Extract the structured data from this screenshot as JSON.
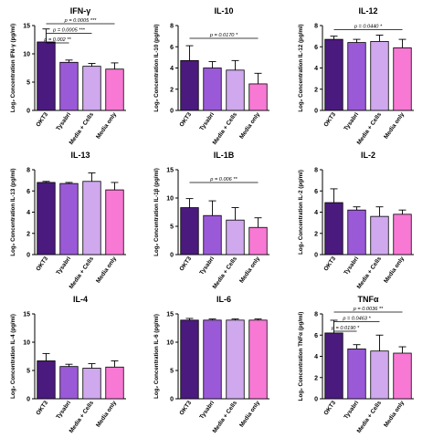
{
  "chart_data": [
    {
      "type": "bar",
      "title": "IFN-γ",
      "ylabel": "Log₂ Concentration IFN-γ (pg/ml)",
      "categories": [
        "OKT3",
        "Tysabri",
        "Media + Cells",
        "Media only"
      ],
      "values": [
        12.1,
        8.5,
        7.8,
        7.3
      ],
      "errors": [
        2.3,
        0.4,
        0.5,
        1.1
      ],
      "ylim": [
        0,
        15
      ],
      "yticks": [
        0,
        5,
        10,
        15
      ],
      "annotations": [
        {
          "from": 0,
          "to": 3,
          "label": "p = 0.0005 ***"
        },
        {
          "from": 0,
          "to": 2,
          "label": "p = 0.0005 ***"
        },
        {
          "from": 0,
          "to": 1,
          "label": "p = 0.002 **"
        }
      ]
    },
    {
      "type": "bar",
      "title": "IL-10",
      "ylabel": "Log₂ Concentration IL-10 (pg/ml)",
      "categories": [
        "OKT3",
        "Tysabri",
        "Media + Cells",
        "Media only"
      ],
      "values": [
        4.7,
        4.0,
        3.8,
        2.5
      ],
      "errors": [
        1.4,
        0.6,
        0.9,
        1.0
      ],
      "ylim": [
        0,
        8
      ],
      "yticks": [
        0,
        2,
        4,
        6,
        8
      ],
      "annotations": [
        {
          "from": 0,
          "to": 3,
          "label": "p = 0.0170 *"
        }
      ]
    },
    {
      "type": "bar",
      "title": "IL-12",
      "ylabel": "Log₂ Concentration IL-12 (pg/ml)",
      "categories": [
        "OKT3",
        "Tysabri",
        "Media + Cells",
        "Media only"
      ],
      "values": [
        6.7,
        6.4,
        6.5,
        5.9
      ],
      "errors": [
        0.3,
        0.3,
        0.6,
        0.8
      ],
      "ylim": [
        0,
        8
      ],
      "yticks": [
        0,
        2,
        4,
        6,
        8
      ],
      "annotations": [
        {
          "from": 0,
          "to": 3,
          "label": "p = 0.0440 *"
        }
      ]
    },
    {
      "type": "bar",
      "title": "IL-13",
      "ylabel": "Log₂ Concentration IL-13 (pg/ml)",
      "categories": [
        "OKT3",
        "Tysabri",
        "Media + Cells",
        "Media only"
      ],
      "values": [
        6.8,
        6.7,
        6.9,
        6.1
      ],
      "errors": [
        0.1,
        0.1,
        0.8,
        0.7
      ],
      "ylim": [
        0,
        8
      ],
      "yticks": [
        0,
        2,
        4,
        6,
        8
      ],
      "annotations": []
    },
    {
      "type": "bar",
      "title": "IL-1B",
      "ylabel": "Log₂ Concentration IL-1β (pg/ml)",
      "categories": [
        "OKT3",
        "Tysabri",
        "Media + Cells",
        "Media only"
      ],
      "values": [
        8.3,
        6.9,
        6.1,
        4.8
      ],
      "errors": [
        1.6,
        2.6,
        2.2,
        1.7
      ],
      "ylim": [
        0,
        15
      ],
      "yticks": [
        0,
        5,
        10,
        15
      ],
      "annotations": [
        {
          "from": 0,
          "to": 3,
          "label": "p = 0.006 **"
        }
      ]
    },
    {
      "type": "bar",
      "title": "IL-2",
      "ylabel": "Log₂ Concentration IL-2 (pg/ml)",
      "categories": [
        "OKT3",
        "Tysabri",
        "Media + Cells",
        "Media only"
      ],
      "values": [
        4.9,
        4.2,
        3.6,
        3.8
      ],
      "errors": [
        1.3,
        0.3,
        0.9,
        0.4
      ],
      "ylim": [
        0,
        8
      ],
      "yticks": [
        0,
        2,
        4,
        6,
        8
      ],
      "annotations": []
    },
    {
      "type": "bar",
      "title": "IL-4",
      "ylabel": "Log₂ Concentration IL-4 (pg/ml)",
      "categories": [
        "OKT3",
        "Tysabri",
        "Media + Cells",
        "Media only"
      ],
      "values": [
        6.7,
        5.7,
        5.4,
        5.6
      ],
      "errors": [
        1.3,
        0.4,
        0.8,
        1.1
      ],
      "ylim": [
        0,
        15
      ],
      "yticks": [
        0,
        5,
        10,
        15
      ],
      "annotations": []
    },
    {
      "type": "bar",
      "title": "IL-6",
      "ylabel": "Log₂ Concentration IL-6 (pg/ml)",
      "categories": [
        "OKT3",
        "Tysabri",
        "Media + Cells",
        "Media only"
      ],
      "values": [
        13.9,
        13.9,
        13.9,
        13.9
      ],
      "errors": [
        0.3,
        0.2,
        0.2,
        0.2
      ],
      "ylim": [
        0,
        15
      ],
      "yticks": [
        0,
        5,
        10,
        15
      ],
      "annotations": []
    },
    {
      "type": "bar",
      "title": "TNFα",
      "ylabel": "Log₂ Concentration TNFα (pg/ml)",
      "categories": [
        "OKT3",
        "Tysabri",
        "Media + Cells",
        "Media only"
      ],
      "values": [
        6.2,
        4.7,
        4.5,
        4.3
      ],
      "errors": [
        1.2,
        0.4,
        1.5,
        0.6
      ],
      "ylim": [
        0,
        8
      ],
      "yticks": [
        0,
        2,
        4,
        6,
        8
      ],
      "annotations": [
        {
          "from": 0,
          "to": 3,
          "label": "p = 0.0036 **"
        },
        {
          "from": 0,
          "to": 2,
          "label": "p = 0.0463 *"
        },
        {
          "from": 0,
          "to": 1,
          "label": "p = 0.0190 *"
        }
      ]
    }
  ],
  "colors": [
    "#4b1a7e",
    "#9a5ad7",
    "#cfa8ee",
    "#f779d4"
  ]
}
